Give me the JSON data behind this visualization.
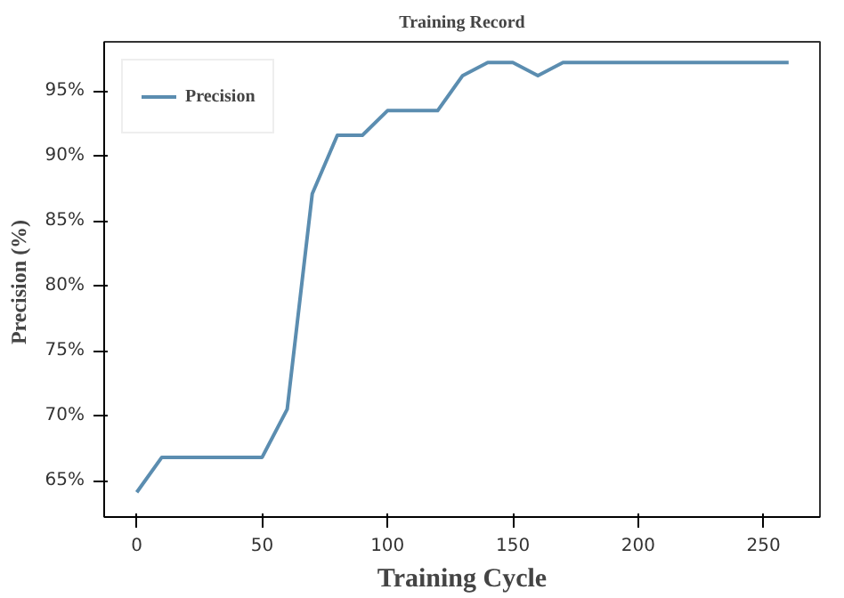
{
  "chart_data": {
    "type": "line",
    "title": "Training Record",
    "xlabel": "Training Cycle",
    "ylabel": "Precision  (%)",
    "x": [
      0,
      10,
      50,
      60,
      70,
      80,
      90,
      100,
      120,
      130,
      140,
      150,
      160,
      170,
      260
    ],
    "series": [
      {
        "name": "Precision",
        "color": "#5b8db0",
        "values": [
          64.1,
          66.8,
          66.8,
          70.5,
          87.1,
          91.6,
          91.6,
          93.5,
          93.5,
          96.2,
          97.2,
          97.2,
          96.2,
          97.2,
          97.2
        ]
      }
    ],
    "xlim": [
      -13,
      272.5
    ],
    "ylim": [
      62.2,
      98.8
    ],
    "xticks": [
      0,
      50,
      100,
      150,
      200,
      250
    ],
    "yticks": [
      {
        "value": 65,
        "label": "65%"
      },
      {
        "value": 70,
        "label": "70%"
      },
      {
        "value": 75,
        "label": "75%"
      },
      {
        "value": 80,
        "label": "80%"
      },
      {
        "value": 85,
        "label": "85%"
      },
      {
        "value": 90,
        "label": "90%"
      },
      {
        "value": 95,
        "label": "95%"
      }
    ],
    "grid": false,
    "legend": "top left",
    "marker": "none",
    "line_style": "solid"
  }
}
